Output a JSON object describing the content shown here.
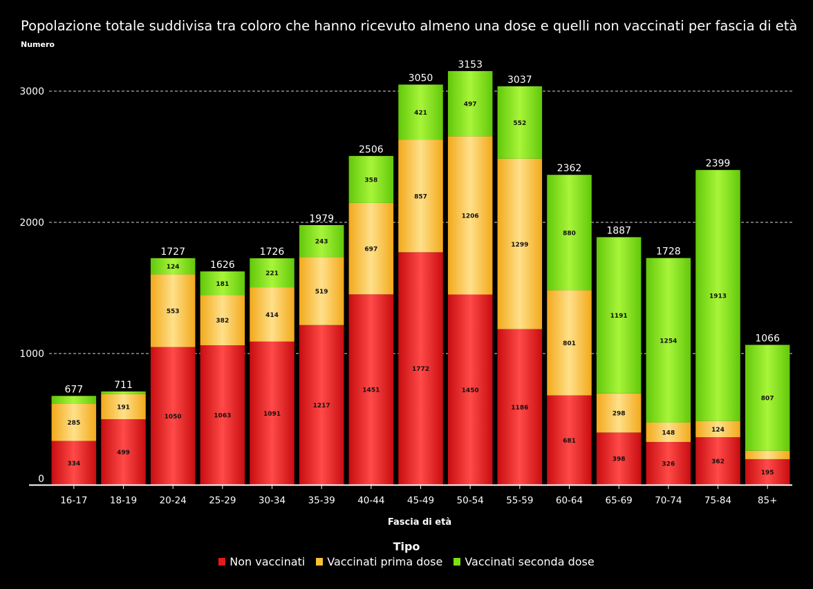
{
  "chart_data": {
    "type": "bar",
    "stacked": true,
    "title": "Popolazione totale suddivisa tra coloro che hanno ricevuto almeno una dose e quelli non vaccinati per fascia di età",
    "ylabel": "Numero",
    "xlabel": "Fascia di età",
    "ylim": [
      0,
      3300
    ],
    "yticks": [
      0,
      1000,
      2000,
      3000
    ],
    "grid": true,
    "legend_title": "Tipo",
    "legend_position": "bottom",
    "categories": [
      "16-17",
      "18-19",
      "20-24",
      "25-29",
      "30-34",
      "35-39",
      "40-44",
      "45-49",
      "50-54",
      "55-59",
      "60-64",
      "65-69",
      "70-74",
      "75-84",
      "85+"
    ],
    "totals": [
      677,
      711,
      1727,
      1626,
      1726,
      1979,
      2506,
      3050,
      3153,
      3037,
      2362,
      1887,
      1728,
      2399,
      1066
    ],
    "series": [
      {
        "name": "Non vaccinati",
        "color": "#e8191b",
        "values": [
          334,
          499,
          1050,
          1063,
          1091,
          1217,
          1451,
          1772,
          1450,
          1186,
          681,
          398,
          326,
          362,
          195
        ]
      },
      {
        "name": "Vaccinati prima dose",
        "color": "#f7c232",
        "values": [
          285,
          191,
          553,
          382,
          414,
          519,
          697,
          857,
          1206,
          1299,
          801,
          298,
          148,
          124,
          64
        ]
      },
      {
        "name": "Vaccinati seconda dose",
        "color": "#7ddf12",
        "values": [
          58,
          21,
          124,
          181,
          221,
          243,
          358,
          421,
          497,
          552,
          880,
          1191,
          1254,
          1913,
          807
        ]
      }
    ],
    "hidden_labels": [
      [],
      [],
      [],
      [],
      [],
      [],
      [],
      [],
      [],
      [],
      [],
      [],
      [],
      [],
      []
    ],
    "label_visibility": [
      [
        true,
        true,
        false
      ],
      [
        true,
        true,
        false
      ],
      [
        true,
        true,
        true
      ],
      [
        true,
        true,
        true
      ],
      [
        true,
        true,
        true
      ],
      [
        true,
        true,
        true
      ],
      [
        true,
        true,
        true
      ],
      [
        true,
        true,
        true
      ],
      [
        true,
        true,
        true
      ],
      [
        true,
        true,
        true
      ],
      [
        true,
        true,
        true
      ],
      [
        true,
        true,
        true
      ],
      [
        true,
        true,
        true
      ],
      [
        true,
        true,
        true
      ],
      [
        true,
        false,
        true
      ]
    ]
  }
}
